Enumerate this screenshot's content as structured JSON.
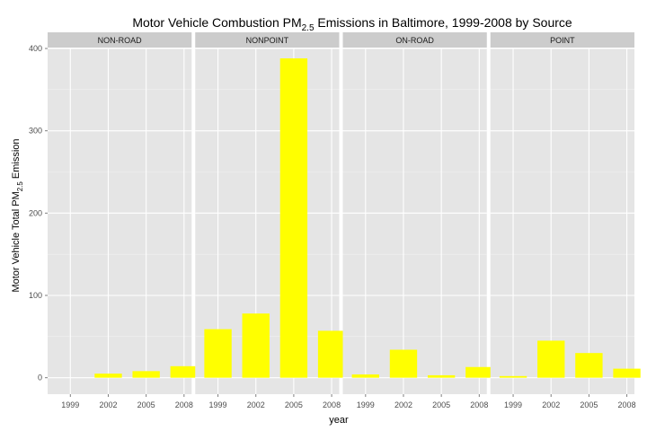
{
  "chart_data": {
    "type": "bar",
    "title": {
      "prefix": "Motor Vehicle Combustion PM",
      "subscript": "2.5",
      "suffix": " Emissions in Baltimore, 1999-2008 by Source"
    },
    "xlabel": "year",
    "ylabel": {
      "prefix": "Motor Vehicle Total PM",
      "subscript": "2.5",
      "suffix": " Emission"
    },
    "categories": [
      "1999",
      "2002",
      "2005",
      "2008"
    ],
    "ylim": [
      -20,
      400
    ],
    "yticks": [
      0,
      100,
      200,
      300,
      400
    ],
    "grid": true,
    "panels": [
      {
        "name": "NON-ROAD",
        "values": [
          0,
          5,
          8,
          14
        ]
      },
      {
        "name": "NONPOINT",
        "values": [
          59,
          78,
          388,
          57
        ]
      },
      {
        "name": "ON-ROAD",
        "values": [
          4,
          34,
          3,
          13
        ]
      },
      {
        "name": "POINT",
        "values": [
          2,
          45,
          30,
          11
        ]
      }
    ],
    "colors": {
      "bar": "#ffff00",
      "panel_bg": "#e5e5e5",
      "strip_bg": "#cccccc",
      "grid_major": "#ffffff",
      "grid_minor": "#f2f2f2"
    }
  }
}
